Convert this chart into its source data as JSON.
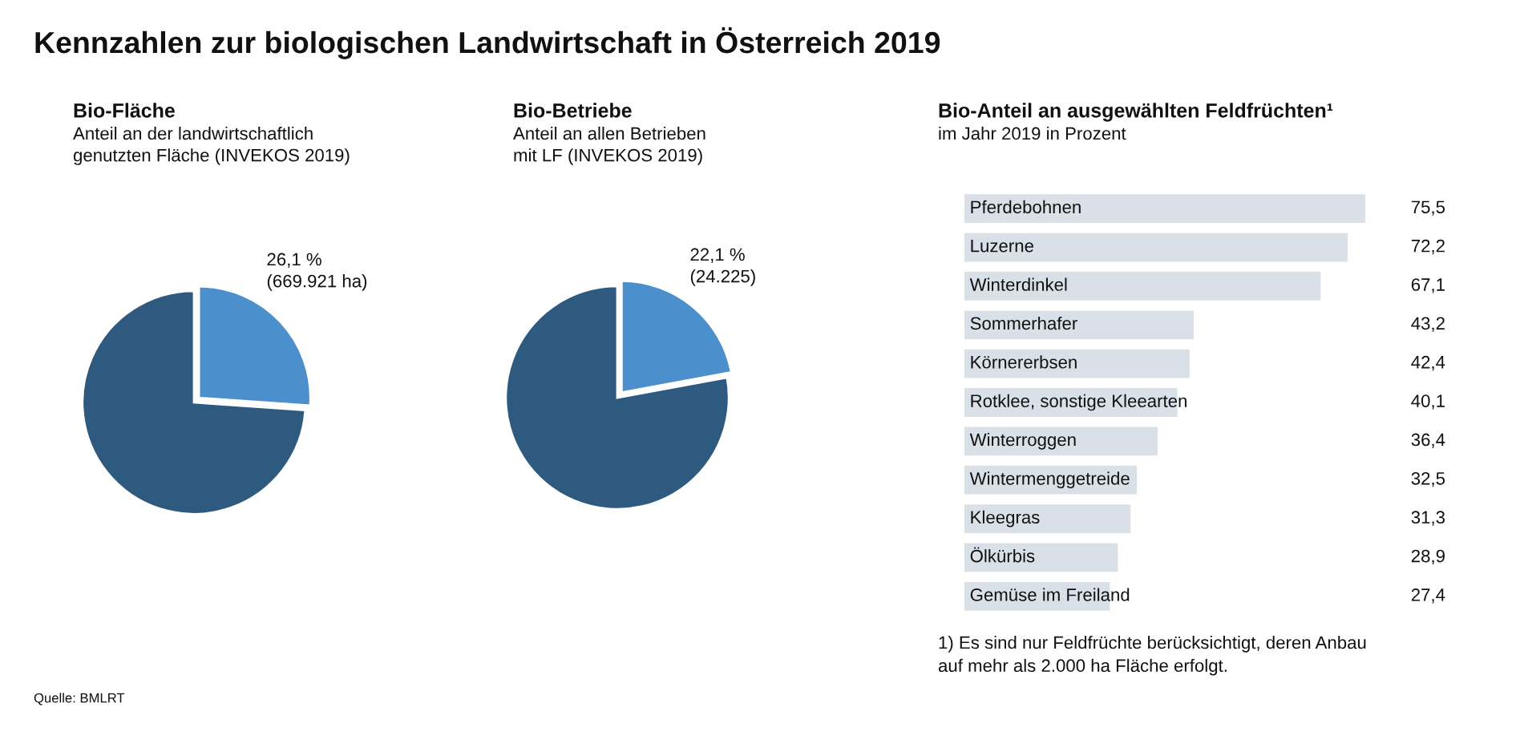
{
  "chart_data": [
    {
      "type": "other",
      "title": "Kennzahlen zur biologischen Landwirtschaft in Österreich 2019",
      "annotations": [
        "Quelle: BMLRT"
      ]
    },
    {
      "type": "pie",
      "title": "Bio-Fläche",
      "subtitle": "Anteil an der landwirtschaftlich\ngenutzten Fläche (INVEKOS 2019)",
      "categories": [
        "26,1 %\n(669.921 ha)",
        null
      ],
      "values": [
        26.1,
        73.9
      ],
      "colors": [
        "#4b8fcd",
        "#2e5a7f"
      ]
    },
    {
      "type": "pie",
      "title": "Bio-Betriebe",
      "subtitle": "Anteil an allen Betrieben\nmit LF (INVEKOS 2019)",
      "categories": [
        "22,1 %\n(24.225)",
        null
      ],
      "values": [
        22.1,
        77.9
      ],
      "colors": [
        "#4b8fcd",
        "#2e5a7f"
      ]
    },
    {
      "type": "bar",
      "orientation": "horizontal",
      "title": "Bio-Anteil an ausgewählten Feldfrüchten¹",
      "subtitle": "im Jahr 2019 in Prozent",
      "categories": [
        "Pferdebohnen",
        "Luzerne",
        "Winterdinkel",
        "Sommerhafer",
        "Körnererbsen",
        "Rotklee, sonstige Kleearten",
        "Winterroggen",
        "Wintermenggetreide",
        "Kleegras",
        "Ölkürbis",
        "Gemüse im Freiland"
      ],
      "values": [
        75.5,
        72.2,
        67.1,
        43.2,
        42.4,
        40.1,
        36.4,
        32.5,
        31.3,
        28.9,
        27.4
      ],
      "value_labels": [
        "75,5",
        "72,2",
        "67,1",
        "43,2",
        "42,4",
        "40,1",
        "36,4",
        "32,5",
        "31,3",
        "28,9",
        "27,4"
      ],
      "color": "#d9e0e7",
      "xlim": [
        0,
        75.5
      ],
      "annotations": [
        "1) Es sind nur Feldfrüchte berücksichtigt, deren Anbau\nauf mehr als 2.000 ha Fläche erfolgt."
      ]
    }
  ]
}
